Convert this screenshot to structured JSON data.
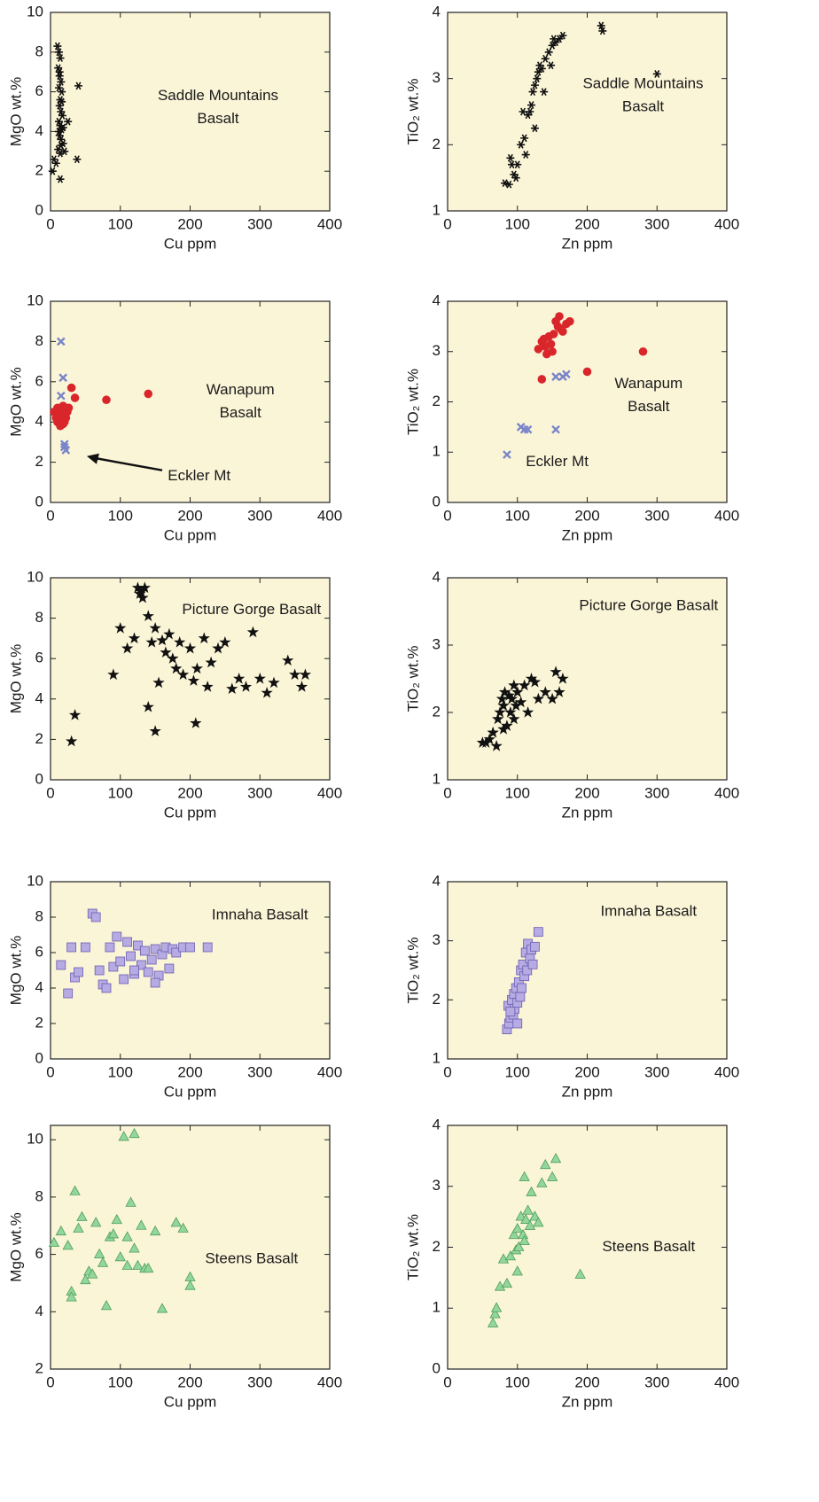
{
  "chart_data": [
    {
      "type": "scatter",
      "xlabel": "Cu ppm",
      "ylabel": "MgO wt.%",
      "xlim": [
        0,
        400
      ],
      "xticks": [
        0,
        100,
        200,
        300,
        400
      ],
      "ylim": [
        0,
        10
      ],
      "yticks": [
        0,
        2,
        4,
        6,
        8,
        10
      ],
      "annotations": [
        [
          "Saddle Mountains",
          "Basalt"
        ]
      ],
      "series": [
        {
          "marker": "asterisk",
          "color": "#111111",
          "x": [
            10,
            12,
            14,
            11,
            13,
            15,
            12,
            16,
            14,
            13,
            15,
            17,
            12,
            14,
            16,
            13,
            15,
            18,
            11,
            14,
            8,
            5,
            3,
            20,
            25,
            40,
            38,
            16,
            12,
            15,
            18,
            14,
            13
          ],
          "y": [
            8.3,
            8.0,
            7.7,
            7.2,
            6.8,
            6.5,
            6.2,
            6.0,
            5.6,
            5.3,
            5.0,
            4.8,
            4.5,
            4.3,
            4.1,
            3.8,
            3.6,
            3.4,
            3.1,
            2.9,
            2.4,
            2.6,
            2.0,
            3.0,
            4.5,
            6.3,
            2.6,
            5.5,
            4.0,
            3.3,
            4.2,
            1.6,
            7.0
          ]
        }
      ]
    },
    {
      "type": "scatter",
      "xlabel": "Zn ppm",
      "ylabel": "TiO₂ wt.%",
      "xlim": [
        0,
        400
      ],
      "xticks": [
        0,
        100,
        200,
        300,
        400
      ],
      "ylim": [
        1,
        4
      ],
      "yticks": [
        1,
        2,
        3,
        4
      ],
      "annotations": [
        [
          "Saddle Mountains",
          "Basalt"
        ]
      ],
      "series": [
        {
          "marker": "asterisk",
          "color": "#111111",
          "x": [
            82,
            88,
            92,
            95,
            90,
            100,
            105,
            110,
            112,
            115,
            118,
            120,
            122,
            125,
            128,
            130,
            132,
            135,
            138,
            140,
            145,
            150,
            152,
            155,
            160,
            165,
            148,
            125,
            108,
            98,
            220,
            222,
            300
          ],
          "y": [
            1.42,
            1.4,
            1.7,
            1.55,
            1.8,
            1.7,
            2.0,
            2.1,
            1.85,
            2.45,
            2.5,
            2.6,
            2.8,
            2.9,
            3.0,
            3.1,
            3.2,
            3.15,
            2.8,
            3.3,
            3.4,
            3.5,
            3.6,
            3.55,
            3.6,
            3.65,
            3.2,
            2.25,
            2.5,
            1.5,
            3.8,
            3.72,
            3.07
          ]
        }
      ]
    },
    {
      "type": "scatter",
      "xlabel": "Cu ppm",
      "ylabel": "MgO wt.%",
      "xlim": [
        0,
        400
      ],
      "xticks": [
        0,
        100,
        200,
        300,
        400
      ],
      "ylim": [
        0,
        10
      ],
      "yticks": [
        0,
        2,
        4,
        6,
        8,
        10
      ],
      "annotations": [
        [
          "Wanapum",
          "Basalt"
        ],
        [
          "Eckler Mt"
        ]
      ],
      "series": [
        {
          "marker": "circle",
          "color": "#d8262b",
          "x": [
            5,
            8,
            10,
            12,
            14,
            16,
            18,
            20,
            22,
            24,
            10,
            14,
            18,
            26,
            30,
            35,
            12,
            20,
            80,
            140
          ],
          "y": [
            4.5,
            4.2,
            4.0,
            4.3,
            4.1,
            4.4,
            3.9,
            4.6,
            4.2,
            4.5,
            4.7,
            3.8,
            4.8,
            4.7,
            5.7,
            5.2,
            4.4,
            4.0,
            5.1,
            5.4
          ]
        },
        {
          "marker": "x",
          "color": "#7a85c9",
          "x": [
            15,
            18,
            15,
            20,
            22,
            20
          ],
          "y": [
            8.0,
            6.2,
            5.3,
            2.9,
            2.6,
            2.75
          ]
        }
      ]
    },
    {
      "type": "scatter",
      "xlabel": "Zn ppm",
      "ylabel": "TiO₂ wt.%",
      "xlim": [
        0,
        400
      ],
      "xticks": [
        0,
        100,
        200,
        300,
        400
      ],
      "ylim": [
        0,
        4
      ],
      "yticks": [
        0,
        1,
        2,
        3,
        4
      ],
      "annotations": [
        [
          "Wanapum",
          "Basalt"
        ],
        [
          "Eckler Mt"
        ]
      ],
      "series": [
        {
          "marker": "circle",
          "color": "#d8262b",
          "x": [
            130,
            135,
            140,
            145,
            150,
            155,
            160,
            165,
            170,
            175,
            138,
            148,
            158,
            142,
            152,
            162,
            135,
            200,
            280
          ],
          "y": [
            3.05,
            3.2,
            3.1,
            3.3,
            3.0,
            3.6,
            3.7,
            3.4,
            3.55,
            3.6,
            3.25,
            3.15,
            3.5,
            2.95,
            3.35,
            3.45,
            2.45,
            2.6,
            3.0
          ]
        },
        {
          "marker": "x",
          "color": "#7a85c9",
          "x": [
            85,
            105,
            110,
            115,
            155,
            155,
            165,
            170
          ],
          "y": [
            0.95,
            1.5,
            1.45,
            1.45,
            1.45,
            2.5,
            2.5,
            2.55
          ]
        }
      ]
    },
    {
      "type": "scatter",
      "xlabel": "Cu ppm",
      "ylabel": "MgO wt.%",
      "xlim": [
        0,
        400
      ],
      "xticks": [
        0,
        100,
        200,
        300,
        400
      ],
      "ylim": [
        0,
        10
      ],
      "yticks": [
        0,
        2,
        4,
        6,
        8,
        10
      ],
      "annotations": [
        [
          "Picture Gorge Basalt"
        ]
      ],
      "series": [
        {
          "marker": "star",
          "color": "#111111",
          "x": [
            30,
            35,
            90,
            100,
            110,
            120,
            125,
            130,
            135,
            140,
            145,
            150,
            155,
            160,
            165,
            170,
            175,
            180,
            185,
            190,
            200,
            205,
            210,
            220,
            225,
            230,
            240,
            250,
            260,
            270,
            280,
            290,
            300,
            310,
            320,
            340,
            350,
            360,
            365,
            140,
            150,
            208,
            128,
            132
          ],
          "y": [
            1.9,
            3.2,
            5.2,
            7.5,
            6.5,
            7.0,
            9.5,
            9.3,
            9.5,
            8.1,
            6.8,
            7.5,
            4.8,
            6.9,
            6.3,
            7.2,
            6.0,
            5.5,
            6.8,
            5.2,
            6.5,
            4.9,
            5.5,
            7.0,
            4.6,
            5.8,
            6.5,
            6.8,
            4.5,
            5.0,
            4.6,
            7.3,
            5.0,
            4.3,
            4.8,
            5.9,
            5.2,
            4.6,
            5.2,
            3.6,
            2.4,
            2.8,
            9.2,
            9.0
          ]
        }
      ]
    },
    {
      "type": "scatter",
      "xlabel": "Zn ppm",
      "ylabel": "TiO₂ wt.%",
      "xlim": [
        0,
        400
      ],
      "xticks": [
        0,
        100,
        200,
        300,
        400
      ],
      "ylim": [
        1,
        4
      ],
      "yticks": [
        1,
        2,
        3,
        4
      ],
      "annotations": [
        [
          "Picture Gorge Basalt"
        ]
      ],
      "series": [
        {
          "marker": "star",
          "color": "#111111",
          "x": [
            50,
            55,
            60,
            65,
            70,
            72,
            75,
            78,
            80,
            82,
            85,
            88,
            90,
            92,
            95,
            98,
            100,
            105,
            110,
            115,
            120,
            125,
            130,
            140,
            150,
            155,
            160,
            165,
            80,
            95
          ],
          "y": [
            1.55,
            1.55,
            1.6,
            1.7,
            1.5,
            1.9,
            2.0,
            2.2,
            2.1,
            2.3,
            1.8,
            2.25,
            2.0,
            2.2,
            1.9,
            2.1,
            2.3,
            2.15,
            2.4,
            2.0,
            2.5,
            2.45,
            2.2,
            2.3,
            2.2,
            2.6,
            2.3,
            2.5,
            1.75,
            2.4
          ]
        }
      ]
    },
    {
      "type": "scatter",
      "xlabel": "Cu ppm",
      "ylabel": "MgO wt.%",
      "xlim": [
        0,
        400
      ],
      "xticks": [
        0,
        100,
        200,
        300,
        400
      ],
      "ylim": [
        0,
        10
      ],
      "yticks": [
        0,
        2,
        4,
        6,
        8,
        10
      ],
      "annotations": [
        [
          "Imnaha Basalt"
        ]
      ],
      "series": [
        {
          "marker": "square",
          "color": "#b7abe3",
          "x": [
            15,
            25,
            30,
            35,
            40,
            50,
            60,
            65,
            70,
            75,
            80,
            85,
            90,
            95,
            100,
            105,
            110,
            115,
            120,
            125,
            130,
            135,
            140,
            145,
            150,
            155,
            160,
            165,
            170,
            175,
            180,
            190,
            200,
            225,
            150,
            120
          ],
          "y": [
            5.3,
            3.7,
            6.3,
            4.6,
            4.9,
            6.3,
            8.2,
            8.0,
            5.0,
            4.2,
            4.0,
            6.3,
            5.2,
            6.9,
            5.5,
            4.5,
            6.6,
            5.8,
            4.8,
            6.4,
            5.3,
            6.1,
            4.9,
            5.6,
            6.2,
            4.7,
            5.9,
            6.3,
            5.1,
            6.2,
            6.0,
            6.3,
            6.3,
            6.3,
            4.3,
            5.0
          ]
        }
      ]
    },
    {
      "type": "scatter",
      "xlabel": "Zn ppm",
      "ylabel": "TiO₂ wt.%",
      "xlim": [
        0,
        400
      ],
      "xticks": [
        0,
        100,
        200,
        300,
        400
      ],
      "ylim": [
        1,
        4
      ],
      "yticks": [
        1,
        2,
        3,
        4
      ],
      "annotations": [
        [
          "Imnaha Basalt"
        ]
      ],
      "series": [
        {
          "marker": "square",
          "color": "#b7abe3",
          "x": [
            85,
            87,
            88,
            90,
            92,
            94,
            95,
            96,
            98,
            100,
            102,
            104,
            105,
            106,
            108,
            110,
            112,
            114,
            115,
            118,
            120,
            122,
            125,
            130,
            90,
            100
          ],
          "y": [
            1.5,
            1.9,
            1.6,
            1.7,
            2.0,
            1.75,
            2.1,
            1.85,
            2.2,
            1.95,
            2.3,
            2.05,
            2.5,
            2.2,
            2.6,
            2.4,
            2.8,
            2.5,
            2.95,
            2.7,
            2.85,
            2.6,
            2.9,
            3.15,
            1.8,
            1.6
          ]
        }
      ]
    },
    {
      "type": "scatter",
      "xlabel": "Cu ppm",
      "ylabel": "MgO wt.%",
      "xlim": [
        0,
        400
      ],
      "xticks": [
        0,
        100,
        200,
        300,
        400
      ],
      "ylim": [
        2,
        10.5
      ],
      "yticks": [
        2,
        4,
        6,
        8,
        10
      ],
      "annotations": [
        [
          "Steens Basalt"
        ]
      ],
      "series": [
        {
          "marker": "triangle",
          "color": "#92d69c",
          "x": [
            5,
            15,
            25,
            30,
            35,
            40,
            45,
            50,
            55,
            60,
            65,
            70,
            75,
            80,
            85,
            90,
            95,
            100,
            105,
            110,
            115,
            120,
            125,
            130,
            135,
            140,
            150,
            160,
            180,
            190,
            200,
            200,
            110,
            120,
            30
          ],
          "y": [
            6.4,
            6.8,
            6.3,
            4.7,
            8.2,
            6.9,
            7.3,
            5.1,
            5.4,
            5.3,
            7.1,
            6.0,
            5.7,
            4.2,
            6.6,
            6.7,
            7.2,
            5.9,
            10.1,
            6.6,
            7.8,
            10.2,
            5.6,
            7.0,
            5.5,
            5.5,
            6.8,
            4.1,
            7.1,
            6.9,
            5.2,
            4.9,
            5.6,
            6.2,
            4.5
          ]
        }
      ]
    },
    {
      "type": "scatter",
      "xlabel": "Zn ppm",
      "ylabel": "TiO₂ wt.%",
      "xlim": [
        0,
        400
      ],
      "xticks": [
        0,
        100,
        200,
        300,
        400
      ],
      "ylim": [
        0,
        4
      ],
      "yticks": [
        0,
        1,
        2,
        3,
        4
      ],
      "annotations": [
        [
          "Steens Basalt"
        ]
      ],
      "series": [
        {
          "marker": "triangle",
          "color": "#92d69c",
          "x": [
            65,
            68,
            70,
            75,
            80,
            85,
            90,
            95,
            98,
            100,
            102,
            105,
            108,
            110,
            112,
            115,
            118,
            120,
            125,
            130,
            135,
            140,
            150,
            155,
            190,
            110,
            100
          ],
          "y": [
            0.75,
            0.9,
            1.0,
            1.35,
            1.8,
            1.4,
            1.85,
            2.2,
            1.95,
            2.3,
            2.0,
            2.5,
            2.2,
            3.15,
            2.45,
            2.6,
            2.35,
            2.9,
            2.5,
            2.4,
            3.05,
            3.35,
            3.15,
            3.45,
            1.55,
            2.1,
            1.6
          ]
        }
      ]
    }
  ]
}
